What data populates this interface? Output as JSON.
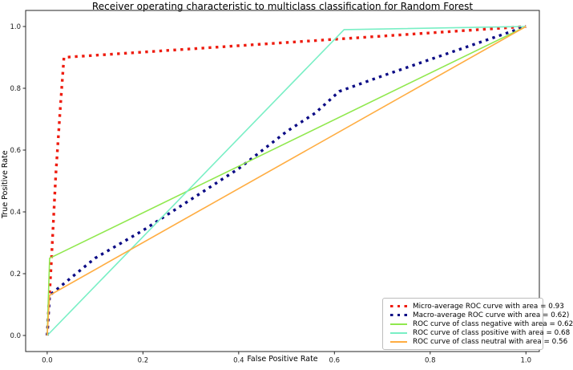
{
  "chart_data": {
    "type": "line",
    "title": "Receiver operating characteristic to multiclass classification for Random Forest",
    "xlabel": "False Positive Rate",
    "ylabel": "True Positive Rate",
    "xlim": [
      -0.045,
      1.028
    ],
    "ylim": [
      -0.052,
      1.052
    ],
    "x_ticks": [
      0.0,
      0.2,
      0.4,
      0.6,
      0.8,
      1.0
    ],
    "y_ticks": [
      0.0,
      0.2,
      0.4,
      0.6,
      0.8,
      1.0
    ],
    "grid": false,
    "legend_position": "lower right",
    "series": [
      {
        "id": "micro-average",
        "name": "Micro-average ROC curve with area = 0.93",
        "color": "#ee1c0f",
        "style": "dotted",
        "linewidth": 3.4,
        "points": [
          [
            0,
            0
          ],
          [
            0.008,
            0.22
          ],
          [
            0.018,
            0.52
          ],
          [
            0.028,
            0.75
          ],
          [
            0.035,
            0.9
          ],
          [
            1,
            1
          ]
        ]
      },
      {
        "id": "macro-average",
        "name": "Macro-average ROC curve with area = 0.62)",
        "color": "#0b0b85",
        "style": "dotted",
        "linewidth": 3.4,
        "points": [
          [
            0,
            0
          ],
          [
            0.005,
            0.13
          ],
          [
            0.1,
            0.25
          ],
          [
            0.2,
            0.34
          ],
          [
            0.3,
            0.44
          ],
          [
            0.4,
            0.54
          ],
          [
            0.5,
            0.66
          ],
          [
            0.56,
            0.72
          ],
          [
            0.61,
            0.79
          ],
          [
            0.7,
            0.84
          ],
          [
            0.85,
            0.92
          ],
          [
            1,
            1
          ]
        ]
      },
      {
        "id": "class-negative",
        "name": "ROC curve of class negative with area = 0.62",
        "color": "#90e84e",
        "style": "solid",
        "linewidth": 1.6,
        "points": [
          [
            0,
            0
          ],
          [
            0.005,
            0.25
          ],
          [
            1,
            1
          ]
        ]
      },
      {
        "id": "class-positive",
        "name": "ROC curve of class positive with area = 0.68",
        "color": "#79efc5",
        "style": "solid",
        "linewidth": 1.6,
        "points": [
          [
            0,
            0
          ],
          [
            0.62,
            0.99
          ],
          [
            1,
            1
          ]
        ]
      },
      {
        "id": "class-neutral",
        "name": "ROC curve of class neutral with area = 0.56",
        "color": "#ffad42",
        "style": "solid",
        "linewidth": 1.6,
        "points": [
          [
            0,
            0
          ],
          [
            0.005,
            0.13
          ],
          [
            1,
            1
          ]
        ]
      }
    ]
  }
}
